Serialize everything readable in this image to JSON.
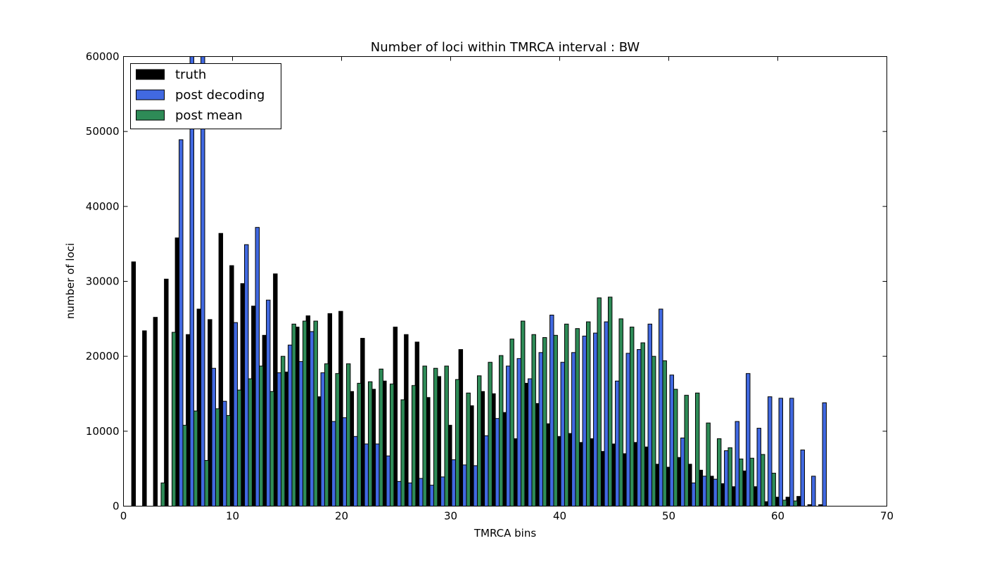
{
  "chart_data": {
    "type": "bar",
    "title": "Number of loci within TMRCA interval : BW",
    "xlabel": "TMRCA bins",
    "ylabel": "number of loci",
    "xlim": [
      0,
      70
    ],
    "ylim": [
      0,
      60000
    ],
    "xticks": [
      "0",
      "10",
      "20",
      "30",
      "40",
      "50",
      "60",
      "70"
    ],
    "yticks": [
      "0",
      "10000",
      "20000",
      "30000",
      "40000",
      "50000",
      "60000"
    ],
    "legend_position": "top-left",
    "grid": false,
    "series": [
      {
        "name": "truth",
        "color": "#000000",
        "offset": 0,
        "x": [
          1,
          2,
          3,
          4,
          5,
          6,
          7,
          8,
          9,
          10,
          11,
          12,
          13,
          14,
          15,
          16,
          17,
          18,
          19,
          20,
          21,
          22,
          23,
          24,
          25,
          26,
          27,
          28,
          29,
          30,
          31,
          32,
          33,
          34,
          35,
          36,
          37,
          38,
          39,
          40,
          41,
          42,
          43,
          44,
          45,
          46,
          47,
          48,
          49,
          50,
          51,
          52,
          53,
          54,
          55,
          56,
          57,
          58,
          59,
          60,
          61,
          62,
          63,
          64
        ],
        "values": [
          32600,
          23400,
          25200,
          30300,
          35800,
          22900,
          26300,
          24900,
          36400,
          32100,
          29700,
          26700,
          22800,
          31000,
          17900,
          23900,
          25400,
          14600,
          25700,
          26000,
          15300,
          22400,
          15600,
          16700,
          23900,
          22900,
          21900,
          14500,
          17300,
          10800,
          20900,
          13400,
          15300,
          15000,
          12500,
          9000,
          16400,
          13700,
          11000,
          9300,
          9700,
          8500,
          9000,
          7300,
          8300,
          7000,
          8500,
          7900,
          5600,
          5200,
          6500,
          5600,
          4800,
          4000,
          3000,
          2600,
          4700,
          2600,
          600,
          1200,
          1200,
          1300,
          200,
          200
        ]
      },
      {
        "name": "post decoding",
        "color": "#4169e1",
        "offset": 1,
        "x": [
          1,
          2,
          3,
          4,
          5,
          6,
          7,
          8,
          9,
          10,
          11,
          12,
          13,
          14,
          15,
          16,
          17,
          18,
          19,
          20,
          21,
          22,
          23,
          24,
          25,
          26,
          27,
          28,
          29,
          30,
          31,
          32,
          33,
          34,
          35,
          36,
          37,
          38,
          39,
          40,
          41,
          42,
          43,
          44,
          45,
          46,
          47,
          48,
          49,
          50,
          51,
          52,
          53,
          54,
          55,
          56,
          57,
          58,
          59,
          60,
          61,
          62,
          63,
          64
        ],
        "values": [
          0,
          0,
          0,
          0,
          48900,
          60000,
          60000,
          18400,
          14000,
          24500,
          34900,
          37200,
          27500,
          17800,
          21500,
          19300,
          23300,
          17800,
          11300,
          11800,
          9300,
          8300,
          8300,
          6700,
          3300,
          3100,
          3700,
          2800,
          3900,
          6200,
          5500,
          5400,
          9400,
          11700,
          18700,
          19700,
          17000,
          20500,
          25500,
          19200,
          20500,
          22700,
          23100,
          24600,
          16700,
          20400,
          20900,
          24300,
          26300,
          17500,
          9100,
          3100,
          4000,
          3600,
          7400,
          11300,
          17700,
          10400,
          14600,
          14400,
          14400,
          7500,
          4000,
          13800
        ]
      },
      {
        "name": "post mean",
        "color": "#2e8b57",
        "offset": 2,
        "x": [
          1,
          2,
          3,
          4,
          5,
          6,
          7,
          8,
          9,
          10,
          11,
          12,
          13,
          14,
          15,
          16,
          17,
          18,
          19,
          20,
          21,
          22,
          23,
          24,
          25,
          26,
          27,
          28,
          29,
          30,
          31,
          32,
          33,
          34,
          35,
          36,
          37,
          38,
          39,
          40,
          41,
          42,
          43,
          44,
          45,
          46,
          47,
          48,
          49,
          50,
          51,
          52,
          53,
          54,
          55,
          56,
          57,
          58,
          59,
          60,
          61,
          62,
          63,
          64
        ],
        "values": [
          0,
          0,
          3100,
          23200,
          10800,
          12700,
          6100,
          13000,
          12100,
          15500,
          17000,
          18700,
          15300,
          20000,
          24300,
          24700,
          24700,
          19000,
          17700,
          19000,
          16400,
          16600,
          18300,
          16300,
          14200,
          16100,
          18700,
          18400,
          18700,
          16900,
          15100,
          17400,
          19200,
          20100,
          22300,
          24700,
          22900,
          22500,
          22800,
          24300,
          23700,
          24600,
          27800,
          27900,
          25000,
          23900,
          21800,
          20000,
          19400,
          15600,
          14800,
          15100,
          11100,
          9000,
          7800,
          6300,
          6400,
          6900,
          4400,
          800,
          700,
          0,
          0,
          0
        ]
      }
    ]
  }
}
